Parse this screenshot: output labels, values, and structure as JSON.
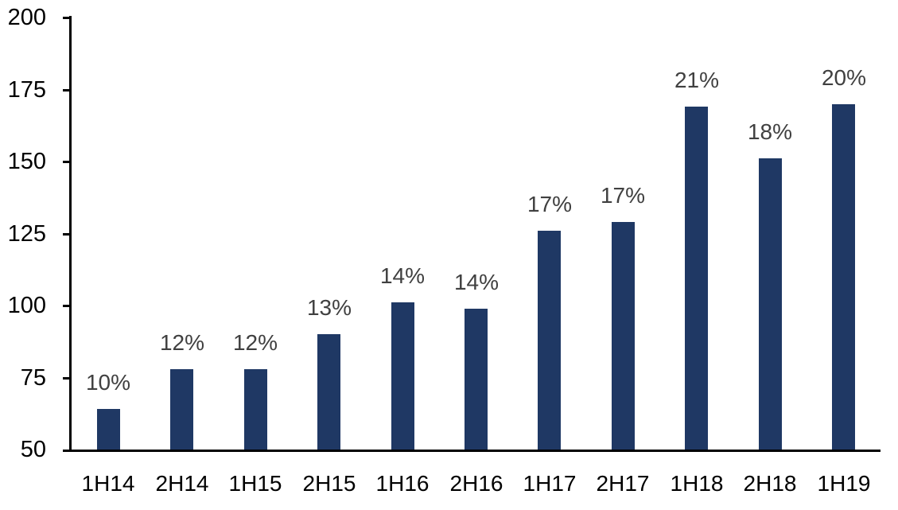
{
  "chart_data": {
    "type": "bar",
    "title": "",
    "xlabel": "",
    "ylabel": "",
    "categories": [
      "1H14",
      "2H14",
      "1H15",
      "2H15",
      "1H16",
      "2H16",
      "1H17",
      "2H17",
      "1H18",
      "2H18",
      "1H19"
    ],
    "values": [
      64,
      78,
      78,
      90,
      101,
      99,
      126,
      129,
      169,
      151,
      170
    ],
    "bar_labels": [
      "10%",
      "12%",
      "12%",
      "13%",
      "14%",
      "14%",
      "17%",
      "17%",
      "21%",
      "18%",
      "20%"
    ],
    "ylim": [
      50,
      200
    ],
    "yticks": [
      50,
      75,
      100,
      125,
      150,
      175,
      200
    ],
    "grid": false,
    "legend": "none",
    "bar_color": "#1f3864",
    "bar_label_color": "#404040",
    "axis_text_color": "#000000",
    "axis_line_color": "#000000"
  }
}
